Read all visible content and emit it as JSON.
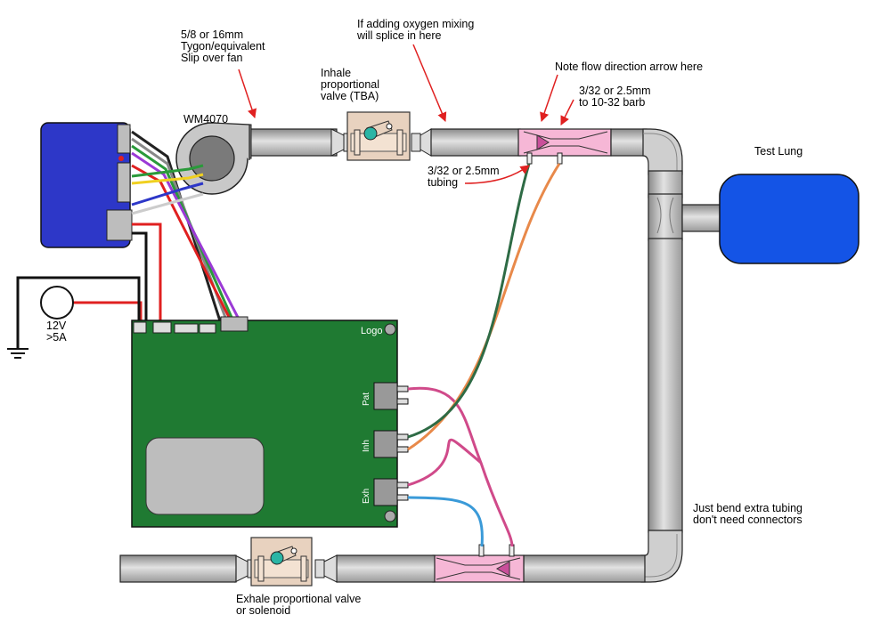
{
  "labels": {
    "tubing_size": "5/8 or 16mm\nTygon/equivalent\nSlip over fan",
    "oxygen_note": "If adding oxygen mixing\nwill splice in here",
    "inhale_valve": "Inhale\nproportional\nvalve (TBA)",
    "flow_arrow_note": "Note flow direction arrow here",
    "barb_note": "3/32 or 2.5mm\nto 10-32 barb",
    "fan_model": "WM4070",
    "sense_tubing": "3/32 or 2.5mm\ntubing",
    "test_lung": "Test Lung",
    "power": "12V\n>5A",
    "logo": "Logo",
    "sensor_pat": "Pat",
    "sensor_inh": "Inh",
    "sensor_exh": "Exh",
    "bend_note": "Just bend extra tubing\ndon't need connectors",
    "exhale_valve": "Exhale proportional valve\nor solenoid"
  },
  "colors": {
    "pcb_green": "#1f7a32",
    "driver_blue": "#2d37c8",
    "lung_blue": "#1454e6",
    "tube_gray": "#bdbdbd",
    "venturi_pink": "#f6b7d6",
    "annotation_red": "#e02020",
    "sense_line_pat": "#d04a8a",
    "sense_line_inh": "#e8894a",
    "sense_line_green": "#2e6b45",
    "sense_line_exh": "#3a9ad8"
  },
  "icons": [
    "fan-icon",
    "proportional-valve-icon",
    "pressure-sensor-icon",
    "screw-icon",
    "ground-icon",
    "power-source-icon",
    "flow-arrow-icon"
  ]
}
